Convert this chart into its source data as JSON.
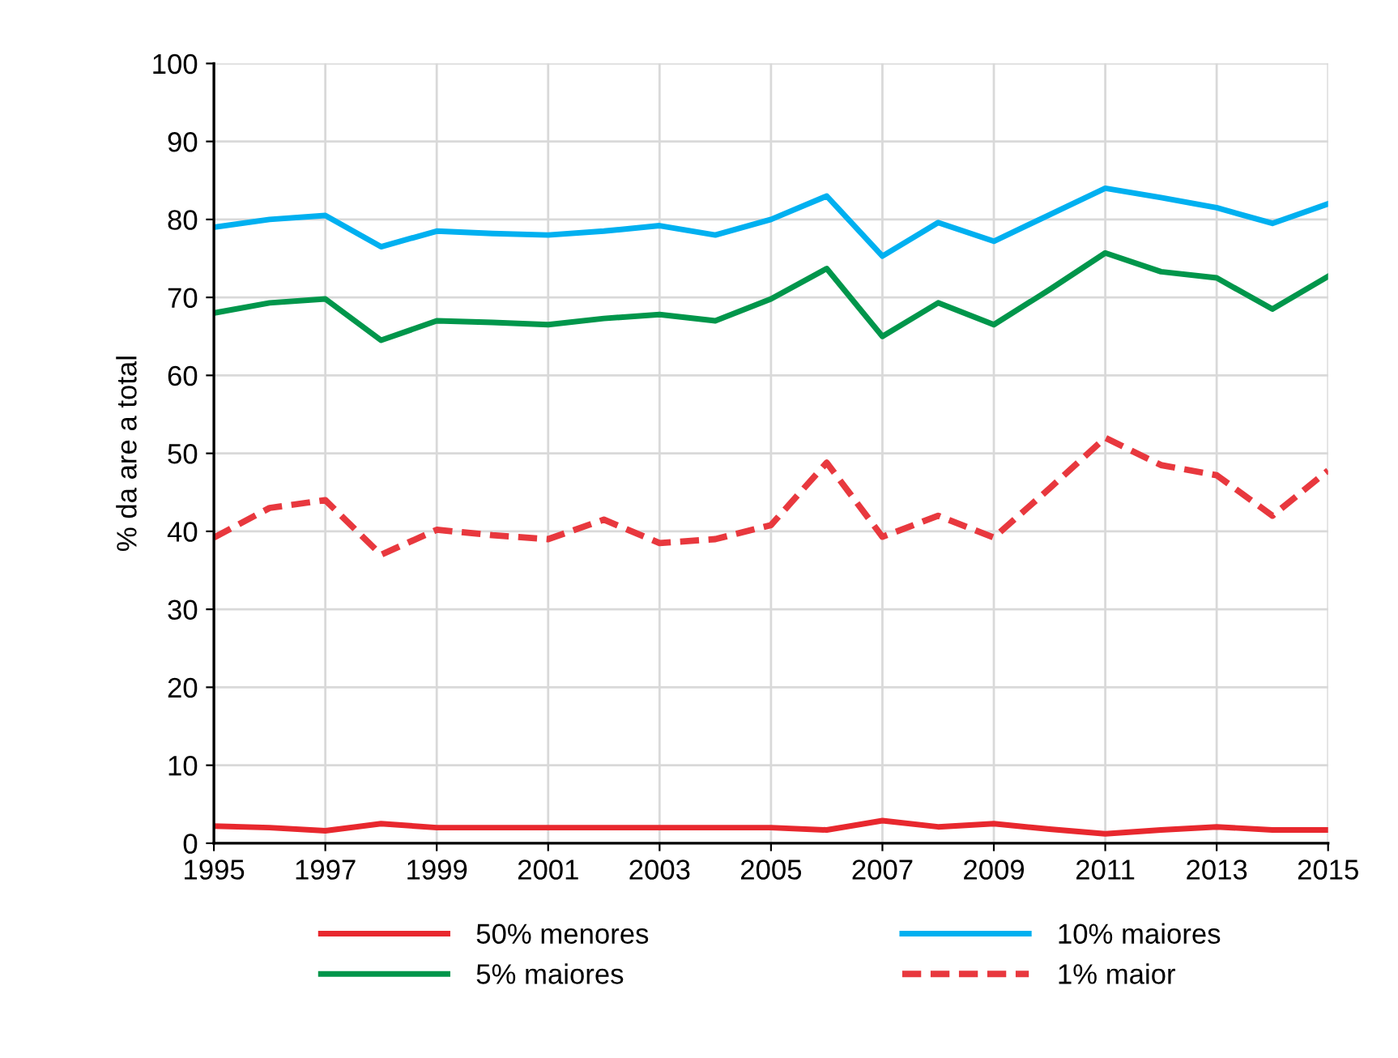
{
  "chart_data": {
    "type": "line",
    "ylabel": "% da are a total",
    "x": [
      1995,
      1996,
      1997,
      1998,
      1999,
      2000,
      2001,
      2002,
      2003,
      2004,
      2005,
      2006,
      2007,
      2008,
      2009,
      2010,
      2011,
      2012,
      2013,
      2014,
      2015
    ],
    "series": [
      {
        "name": "50% menores",
        "color": "#e8282e",
        "line_style": "solid",
        "values": [
          2.2,
          2.0,
          1.6,
          2.5,
          2.0,
          2.0,
          2.0,
          2.0,
          2.0,
          2.0,
          2.0,
          1.7,
          2.9,
          2.1,
          2.5,
          1.8,
          1.2,
          1.7,
          2.1,
          1.7,
          1.7
        ]
      },
      {
        "name": "10% maiores",
        "color": "#00b0f0",
        "line_style": "solid",
        "values": [
          79,
          80,
          80.5,
          76.5,
          78.5,
          78.2,
          78,
          78.5,
          79.2,
          78,
          80,
          83,
          75.3,
          79.6,
          77.2,
          80.6,
          84,
          82.8,
          81.5,
          79.5,
          82
        ]
      },
      {
        "name": "5% maiores",
        "color": "#00964b",
        "line_style": "solid",
        "values": [
          68,
          69.3,
          69.8,
          64.5,
          67,
          66.8,
          66.5,
          67.3,
          67.8,
          67,
          69.8,
          73.7,
          65,
          69.3,
          66.5,
          71,
          75.7,
          73.3,
          72.5,
          68.5,
          72.7
        ]
      },
      {
        "name": "1% maior",
        "color": "#e8383e",
        "line_style": "dashed",
        "values": [
          39.2,
          43,
          44,
          37,
          40.2,
          39.5,
          39,
          41.5,
          38.5,
          39,
          40.8,
          48.8,
          39.3,
          42,
          39.2,
          45.5,
          52,
          48.5,
          47.2,
          42,
          47.8
        ]
      }
    ],
    "xlim": [
      1995,
      2015
    ],
    "xticks": [
      1995,
      1997,
      1999,
      2001,
      2003,
      2005,
      2007,
      2009,
      2011,
      2013,
      2015
    ],
    "ylim": [
      0,
      100
    ],
    "yticks": [
      0,
      10,
      20,
      30,
      40,
      50,
      60,
      70,
      80,
      90,
      100
    ],
    "grid": true,
    "legend": "bottom",
    "marker": "none"
  }
}
